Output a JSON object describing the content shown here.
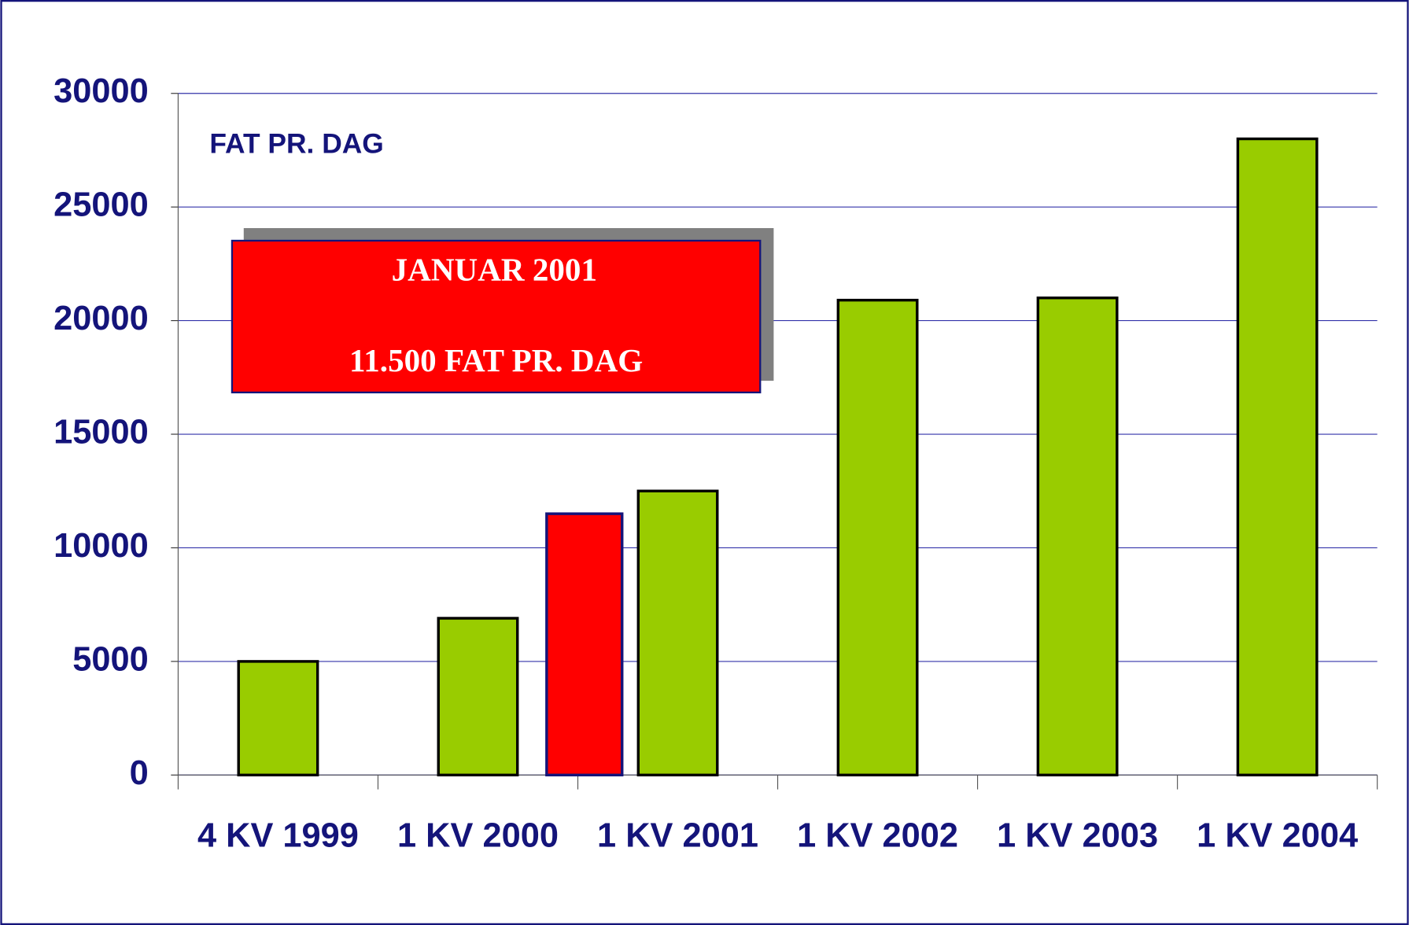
{
  "chart_data": {
    "type": "bar",
    "y_label": "FAT PR. DAG",
    "categories": [
      "4 KV 1999",
      "1 KV 2000",
      "1 KV 2001",
      "1 KV 2002",
      "1 KV 2003",
      "1 KV 2004"
    ],
    "series": [
      {
        "color": "#99cc00",
        "values": [
          5000,
          6900,
          12500,
          20900,
          21000,
          28000
        ]
      },
      {
        "color": "#ff0000",
        "values": [
          null,
          null,
          11500,
          null,
          null,
          null
        ]
      }
    ],
    "annotations": [
      "JANUAR 2001",
      "11.500 FAT PR. DAG"
    ],
    "ylim": [
      0,
      30000
    ],
    "yticks": [
      0,
      5000,
      10000,
      15000,
      20000,
      25000,
      30000
    ],
    "grid": true
  }
}
